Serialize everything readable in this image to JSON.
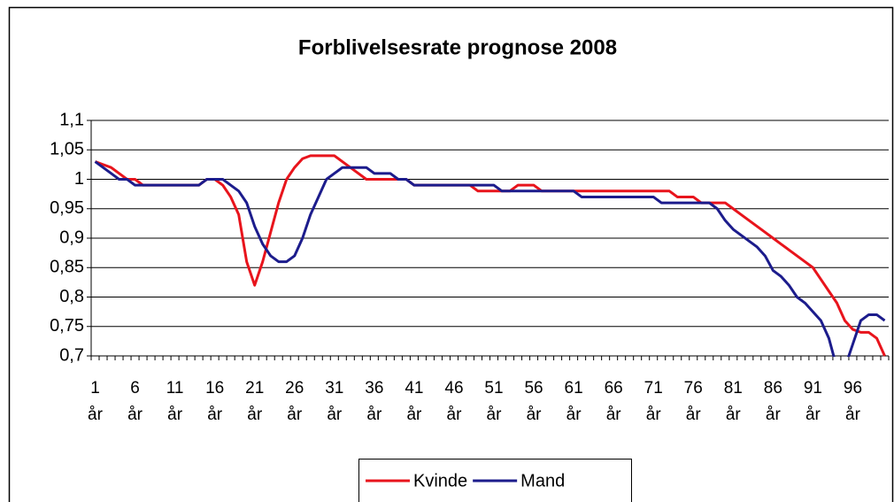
{
  "chart_data": {
    "type": "line",
    "title": "Forblivelsesrate prognose 2008",
    "categories": [
      "1 år",
      null,
      null,
      null,
      null,
      "6 år",
      null,
      null,
      null,
      null,
      "11 år",
      null,
      null,
      null,
      null,
      "16 år",
      null,
      null,
      null,
      null,
      "21 år",
      null,
      null,
      null,
      null,
      "26 år",
      null,
      null,
      null,
      null,
      "31 år",
      null,
      null,
      null,
      null,
      "36 år",
      null,
      null,
      null,
      null,
      "41 år",
      null,
      null,
      null,
      null,
      "46 år",
      null,
      null,
      null,
      null,
      "51 år",
      null,
      null,
      null,
      null,
      "56 år",
      null,
      null,
      null,
      null,
      "61 år",
      null,
      null,
      null,
      null,
      "66 år",
      null,
      null,
      null,
      null,
      "71 år",
      null,
      null,
      null,
      null,
      "76 år",
      null,
      null,
      null,
      null,
      "81 år",
      null,
      null,
      null,
      null,
      "86 år",
      null,
      null,
      null,
      null,
      "91 år",
      null,
      null,
      null,
      null,
      "96 år",
      null,
      null,
      null,
      null
    ],
    "series": [
      {
        "name": "Kvinde",
        "color": "#e8141c",
        "values": [
          1.03,
          1.025,
          1.02,
          1.01,
          1.0,
          1.0,
          0.99,
          0.99,
          0.99,
          0.99,
          0.99,
          0.99,
          0.99,
          0.99,
          1.0,
          1.0,
          0.99,
          0.97,
          0.94,
          0.86,
          0.82,
          0.86,
          0.91,
          0.96,
          1.0,
          1.02,
          1.035,
          1.04,
          1.04,
          1.04,
          1.04,
          1.03,
          1.02,
          1.01,
          1.0,
          1.0,
          1.0,
          1.0,
          1.0,
          1.0,
          0.99,
          0.99,
          0.99,
          0.99,
          0.99,
          0.99,
          0.99,
          0.99,
          0.98,
          0.98,
          0.98,
          0.98,
          0.98,
          0.99,
          0.99,
          0.99,
          0.98,
          0.98,
          0.98,
          0.98,
          0.98,
          0.98,
          0.98,
          0.98,
          0.98,
          0.98,
          0.98,
          0.98,
          0.98,
          0.98,
          0.98,
          0.98,
          0.98,
          0.97,
          0.97,
          0.97,
          0.96,
          0.96,
          0.96,
          0.96,
          0.95,
          0.94,
          0.93,
          0.92,
          0.91,
          0.9,
          0.89,
          0.88,
          0.87,
          0.86,
          0.85,
          0.83,
          0.81,
          0.79,
          0.76,
          0.745,
          0.74,
          0.74,
          0.73,
          0.7
        ]
      },
      {
        "name": "Mand",
        "color": "#1c1c8c",
        "values": [
          1.03,
          1.02,
          1.01,
          1.0,
          1.0,
          0.99,
          0.99,
          0.99,
          0.99,
          0.99,
          0.99,
          0.99,
          0.99,
          0.99,
          1.0,
          1.0,
          1.0,
          0.99,
          0.98,
          0.96,
          0.92,
          0.89,
          0.87,
          0.86,
          0.86,
          0.87,
          0.9,
          0.94,
          0.97,
          1.0,
          1.01,
          1.02,
          1.02,
          1.02,
          1.02,
          1.01,
          1.01,
          1.01,
          1.0,
          1.0,
          0.99,
          0.99,
          0.99,
          0.99,
          0.99,
          0.99,
          0.99,
          0.99,
          0.99,
          0.99,
          0.99,
          0.98,
          0.98,
          0.98,
          0.98,
          0.98,
          0.98,
          0.98,
          0.98,
          0.98,
          0.98,
          0.97,
          0.97,
          0.97,
          0.97,
          0.97,
          0.97,
          0.97,
          0.97,
          0.97,
          0.97,
          0.96,
          0.96,
          0.96,
          0.96,
          0.96,
          0.96,
          0.96,
          0.95,
          0.93,
          0.915,
          0.905,
          0.895,
          0.885,
          0.87,
          0.845,
          0.835,
          0.82,
          0.8,
          0.79,
          0.775,
          0.76,
          0.73,
          0.68,
          0.68,
          0.72,
          0.76,
          0.77,
          0.77,
          0.76
        ]
      }
    ],
    "ylim": [
      0.7,
      1.1
    ],
    "yticks": [
      {
        "value": 0.7,
        "label": "0,7"
      },
      {
        "value": 0.75,
        "label": "0,75"
      },
      {
        "value": 0.8,
        "label": "0,8"
      },
      {
        "value": 0.85,
        "label": "0,85"
      },
      {
        "value": 0.9,
        "label": "0,9"
      },
      {
        "value": 0.95,
        "label": "0,95"
      },
      1,
      {
        "value": 1.05,
        "label": "1,05"
      },
      {
        "value": 1.1,
        "label": "1,1"
      }
    ],
    "grid": true,
    "legend": "bottom"
  }
}
